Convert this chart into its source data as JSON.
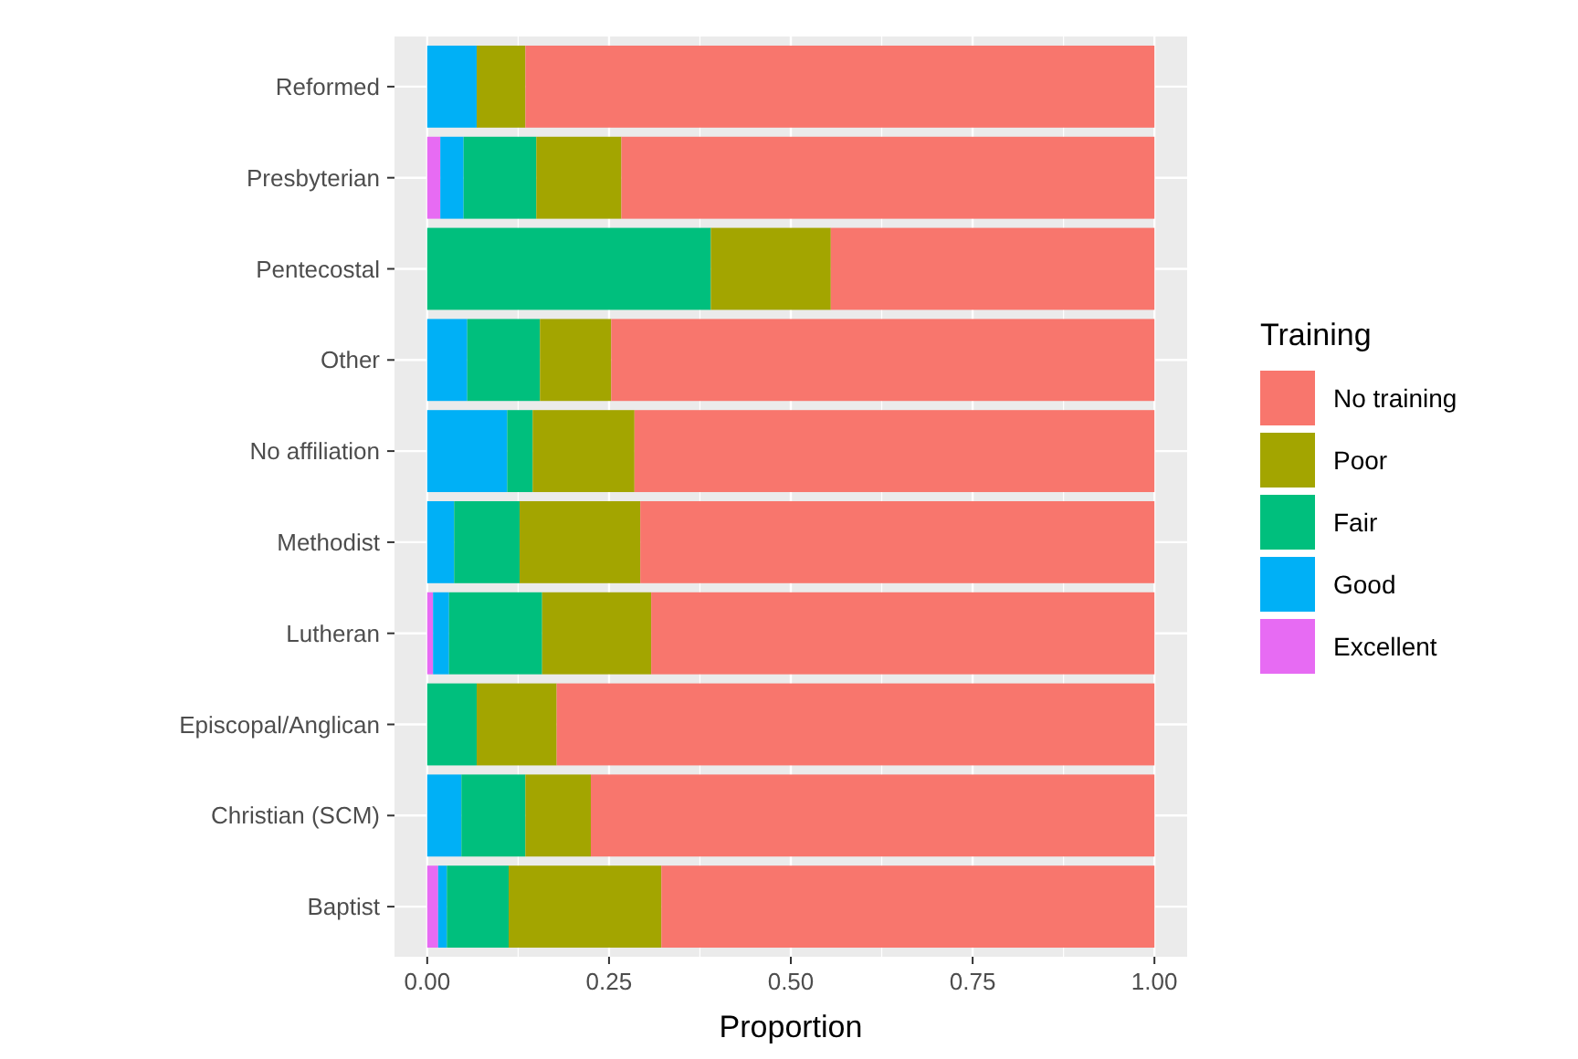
{
  "chart_data": {
    "type": "bar",
    "orientation": "horizontal",
    "stacked": true,
    "xlabel": "Proportion",
    "legend_title": "Training",
    "legend": "right",
    "grid": true,
    "categories": [
      "Reformed",
      "Presbyterian",
      "Pentecostal",
      "Other",
      "No affiliation",
      "Methodist",
      "Lutheran",
      "Episcopal/Anglican",
      "Christian (SCM)",
      "Baptist"
    ],
    "xlim": [
      -0.045,
      1.045
    ],
    "xticks": [
      {
        "value": 0,
        "label": "0.00"
      },
      {
        "value": 0.25,
        "label": "0.25"
      },
      {
        "value": 0.5,
        "label": "0.50"
      },
      {
        "value": 0.75,
        "label": "0.75"
      },
      {
        "value": 1,
        "label": "1.00"
      }
    ],
    "series": [
      {
        "name": "Excellent",
        "color": "#e76bf3",
        "values": [
          0,
          0.018,
          0,
          0,
          0,
          0,
          0.008,
          0,
          0,
          0.015
        ]
      },
      {
        "name": "Good",
        "color": "#00b0f6",
        "values": [
          0.068,
          0.032,
          0,
          0.055,
          0.11,
          0.037,
          0.022,
          0,
          0.047,
          0.012
        ]
      },
      {
        "name": "Fair",
        "color": "#00bf7d",
        "values": [
          0,
          0.1,
          0.39,
          0.1,
          0.035,
          0.09,
          0.128,
          0.068,
          0.088,
          0.085
        ]
      },
      {
        "name": "Poor",
        "color": "#a3a500",
        "values": [
          0.067,
          0.117,
          0.165,
          0.098,
          0.14,
          0.166,
          0.15,
          0.11,
          0.09,
          0.21
        ]
      },
      {
        "name": "No training",
        "color": "#f8766d",
        "values": [
          0.865,
          0.733,
          0.445,
          0.747,
          0.715,
          0.707,
          0.692,
          0.822,
          0.775,
          0.678
        ]
      }
    ]
  }
}
